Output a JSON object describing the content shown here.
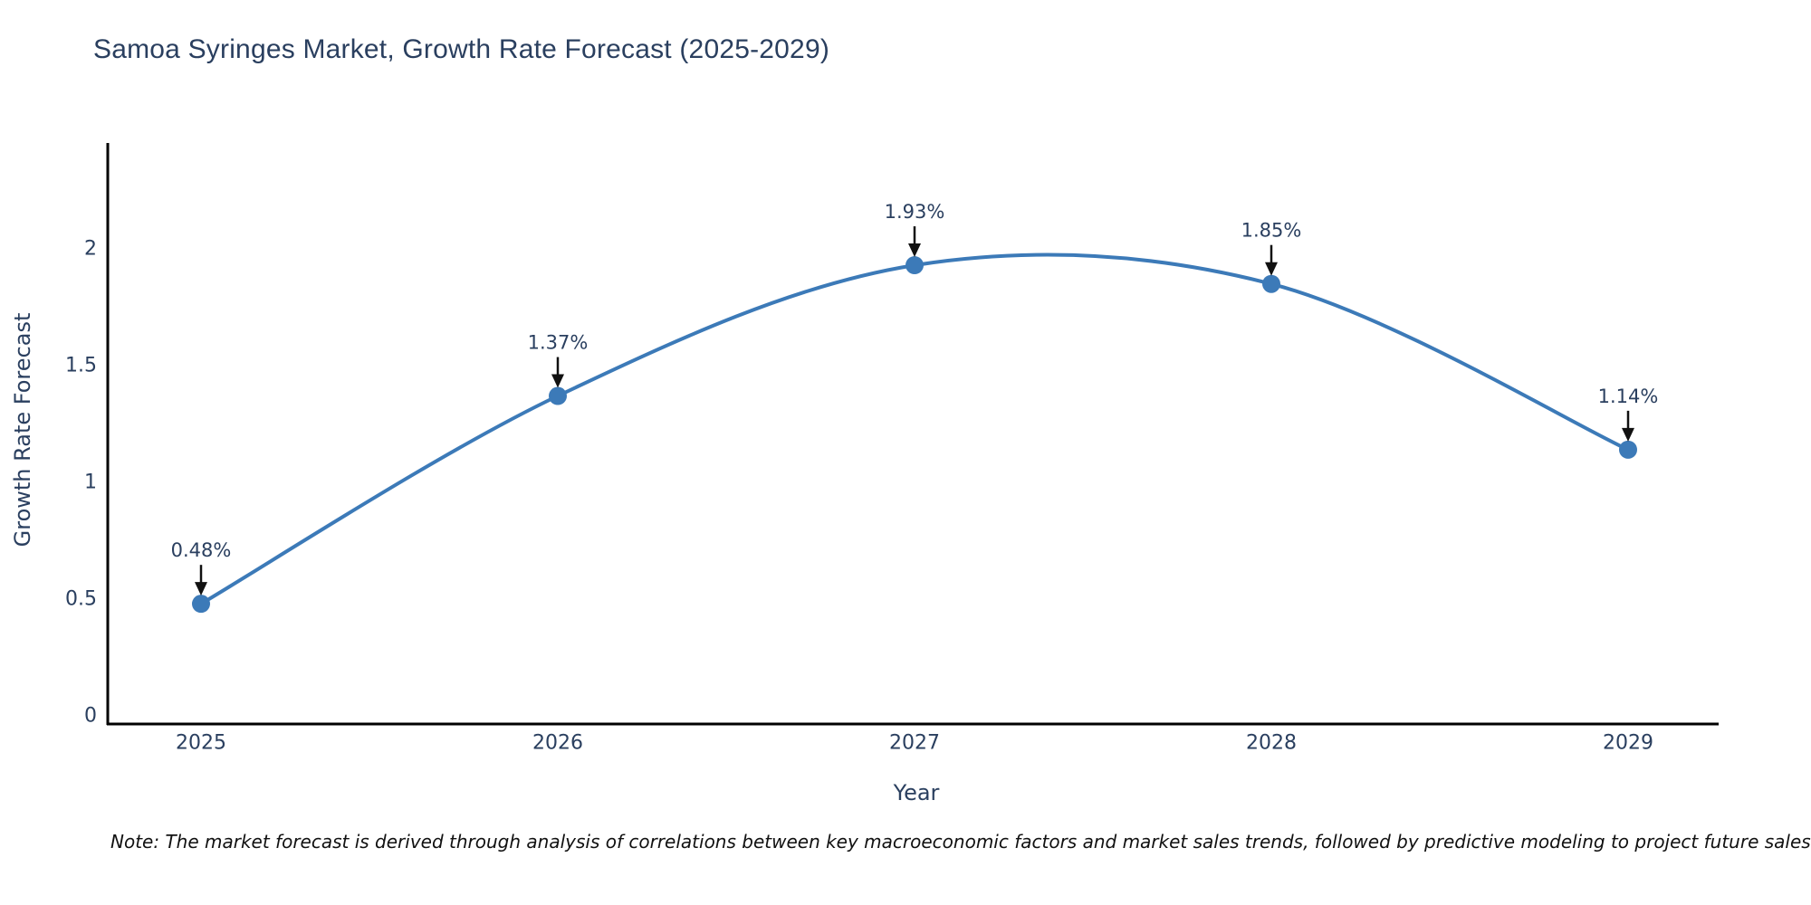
{
  "title": "Samoa Syringes Market, Growth Rate Forecast (2025-2029)",
  "note": "Note: The market forecast is derived through analysis of correlations between key macroeconomic factors and market sales trends, followed by predictive modeling to project future sales",
  "chart_data": {
    "type": "line",
    "line_shape": "spline",
    "categories": [
      "2025",
      "2026",
      "2027",
      "2028",
      "2029"
    ],
    "values": [
      0.48,
      1.37,
      1.93,
      1.85,
      1.14
    ],
    "point_labels": [
      "0.48%",
      "1.37%",
      "1.93%",
      "1.85%",
      "1.14%"
    ],
    "title": "Samoa Syringes Market, Growth Rate Forecast (2025-2029)",
    "xlabel": "Year",
    "ylabel": "Growth Rate Forecast",
    "y_ticks": [
      {
        "value": 0,
        "label": "0"
      },
      {
        "value": 0.5,
        "label": "0.5"
      },
      {
        "value": 1,
        "label": "1"
      },
      {
        "value": 1.5,
        "label": "1.5"
      },
      {
        "value": 2,
        "label": "2"
      }
    ],
    "ylim": [
      -0.035,
      2.49
    ],
    "grid": false,
    "legend": "none",
    "annotations_have_arrows": true,
    "colors": {
      "line": "#3c7ab8",
      "marker": "#3c7ab8",
      "text": "#2a3f5f",
      "axis": "#000000",
      "arrow": "#111111",
      "note": "#111111",
      "background": "#ffffff"
    }
  }
}
